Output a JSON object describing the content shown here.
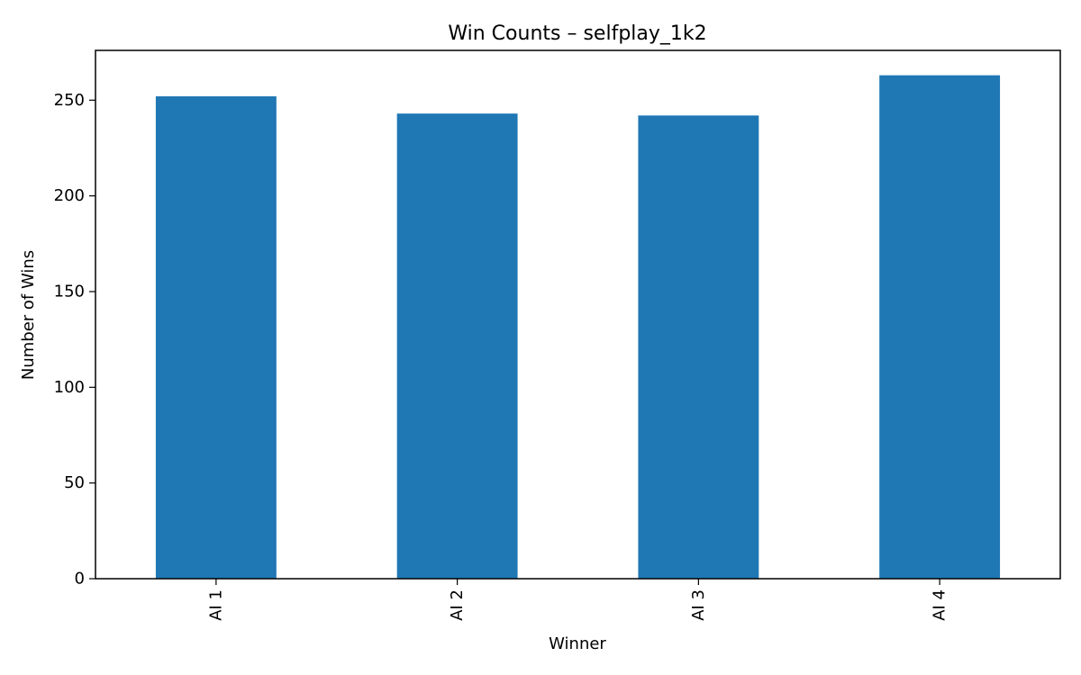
{
  "chart_data": {
    "type": "bar",
    "title": "Win Counts – selfplay_1k2",
    "xlabel": "Winner",
    "ylabel": "Number of Wins",
    "categories": [
      "AI 1",
      "AI 2",
      "AI 3",
      "AI 4"
    ],
    "values": [
      252,
      243,
      242,
      263
    ],
    "ylim": [
      0,
      276
    ],
    "yticks": [
      0,
      50,
      100,
      150,
      200,
      250
    ],
    "grid": false,
    "bar_color": "#1f77b4"
  }
}
